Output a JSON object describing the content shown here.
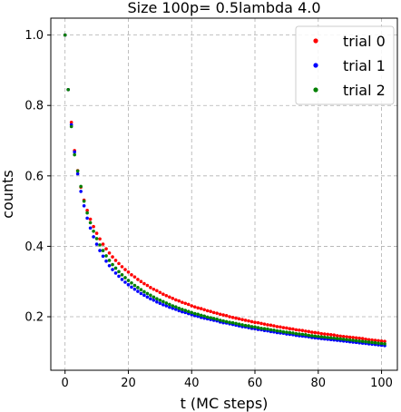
{
  "chart_data": {
    "type": "scatter",
    "title": "Size 100p= 0.5lambda 4.0",
    "xlabel": "t (MC steps)",
    "ylabel": "counts",
    "xlim": [
      -4.5,
      105
    ],
    "ylim": [
      0.048,
      1.048
    ],
    "xticks": [
      0,
      20,
      40,
      60,
      80,
      100
    ],
    "yticks": [
      0.2,
      0.4,
      0.6,
      0.8,
      1.0
    ],
    "grid": true,
    "legend_position": "top-right",
    "x": [
      0,
      1,
      2,
      3,
      4,
      5,
      6,
      7,
      8,
      9,
      10,
      11,
      12,
      13,
      14,
      15,
      16,
      17,
      18,
      19,
      20,
      21,
      22,
      23,
      24,
      25,
      26,
      27,
      28,
      29,
      30,
      31,
      32,
      33,
      34,
      35,
      36,
      37,
      38,
      39,
      40,
      41,
      42,
      43,
      44,
      45,
      46,
      47,
      48,
      49,
      50,
      51,
      52,
      53,
      54,
      55,
      56,
      57,
      58,
      59,
      60,
      61,
      62,
      63,
      64,
      65,
      66,
      67,
      68,
      69,
      70,
      71,
      72,
      73,
      74,
      75,
      76,
      77,
      78,
      79,
      80,
      81,
      82,
      83,
      84,
      85,
      86,
      87,
      88,
      89,
      90,
      91,
      92,
      93,
      94,
      95,
      96,
      97,
      98,
      99,
      100,
      101
    ],
    "series": [
      {
        "name": "trial 0",
        "color": "#ff0000",
        "values": [
          1.0,
          0.845,
          0.752,
          0.672,
          0.615,
          0.568,
          0.531,
          0.502,
          0.477,
          0.456,
          0.437,
          0.421,
          0.406,
          0.393,
          0.381,
          0.37,
          0.36,
          0.351,
          0.342,
          0.334,
          0.327,
          0.319,
          0.313,
          0.306,
          0.3,
          0.294,
          0.289,
          0.283,
          0.278,
          0.274,
          0.269,
          0.264,
          0.26,
          0.256,
          0.252,
          0.248,
          0.245,
          0.241,
          0.238,
          0.235,
          0.231,
          0.228,
          0.225,
          0.223,
          0.22,
          0.217,
          0.215,
          0.212,
          0.21,
          0.207,
          0.205,
          0.203,
          0.2,
          0.198,
          0.196,
          0.194,
          0.192,
          0.19,
          0.188,
          0.186,
          0.184,
          0.183,
          0.181,
          0.179,
          0.177,
          0.176,
          0.174,
          0.172,
          0.171,
          0.169,
          0.168,
          0.166,
          0.165,
          0.163,
          0.162,
          0.161,
          0.159,
          0.158,
          0.156,
          0.155,
          0.154,
          0.152,
          0.151,
          0.15,
          0.149,
          0.148,
          0.146,
          0.145,
          0.144,
          0.143,
          0.142,
          0.141,
          0.14,
          0.139,
          0.138,
          0.136,
          0.135,
          0.134,
          0.133,
          0.132,
          0.131,
          0.13
        ]
      },
      {
        "name": "trial 1",
        "color": "#0000ff",
        "values": [
          1.0,
          0.845,
          0.745,
          0.668,
          0.606,
          0.556,
          0.515,
          0.48,
          0.452,
          0.427,
          0.406,
          0.388,
          0.372,
          0.358,
          0.345,
          0.334,
          0.324,
          0.315,
          0.306,
          0.298,
          0.291,
          0.284,
          0.278,
          0.272,
          0.266,
          0.261,
          0.256,
          0.251,
          0.247,
          0.242,
          0.238,
          0.234,
          0.231,
          0.227,
          0.224,
          0.221,
          0.217,
          0.214,
          0.212,
          0.209,
          0.206,
          0.203,
          0.201,
          0.198,
          0.196,
          0.194,
          0.192,
          0.19,
          0.188,
          0.185,
          0.183,
          0.182,
          0.18,
          0.178,
          0.176,
          0.174,
          0.172,
          0.171,
          0.169,
          0.167,
          0.166,
          0.164,
          0.163,
          0.161,
          0.16,
          0.158,
          0.157,
          0.155,
          0.154,
          0.153,
          0.151,
          0.15,
          0.149,
          0.147,
          0.146,
          0.145,
          0.144,
          0.143,
          0.141,
          0.14,
          0.139,
          0.138,
          0.137,
          0.136,
          0.135,
          0.134,
          0.133,
          0.132,
          0.131,
          0.13,
          0.129,
          0.128,
          0.127,
          0.126,
          0.125,
          0.124,
          0.123,
          0.122,
          0.121,
          0.12,
          0.119,
          0.118
        ]
      },
      {
        "name": "trial 2",
        "color": "#008000",
        "values": [
          1.0,
          0.845,
          0.74,
          0.66,
          0.614,
          0.57,
          0.528,
          0.495,
          0.467,
          0.443,
          0.422,
          0.404,
          0.388,
          0.373,
          0.36,
          0.348,
          0.338,
          0.328,
          0.319,
          0.311,
          0.303,
          0.296,
          0.289,
          0.283,
          0.277,
          0.271,
          0.266,
          0.261,
          0.256,
          0.251,
          0.247,
          0.243,
          0.239,
          0.235,
          0.231,
          0.228,
          0.224,
          0.221,
          0.218,
          0.215,
          0.212,
          0.209,
          0.207,
          0.204,
          0.202,
          0.199,
          0.197,
          0.195,
          0.193,
          0.19,
          0.188,
          0.186,
          0.184,
          0.183,
          0.181,
          0.179,
          0.177,
          0.175,
          0.174,
          0.172,
          0.171,
          0.169,
          0.167,
          0.166,
          0.165,
          0.163,
          0.162,
          0.16,
          0.159,
          0.157,
          0.156,
          0.155,
          0.154,
          0.152,
          0.151,
          0.15,
          0.149,
          0.147,
          0.146,
          0.145,
          0.144,
          0.143,
          0.142,
          0.141,
          0.14,
          0.139,
          0.138,
          0.137,
          0.136,
          0.135,
          0.134,
          0.133,
          0.132,
          0.131,
          0.13,
          0.129,
          0.128,
          0.127,
          0.126,
          0.125,
          0.124,
          0.123
        ]
      }
    ]
  }
}
